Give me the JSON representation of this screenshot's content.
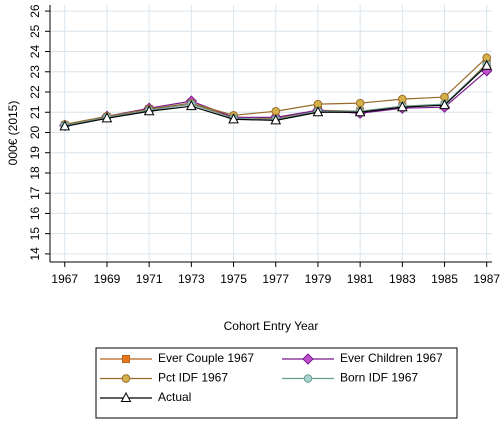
{
  "chart_data": {
    "type": "line",
    "x_label": "Cohort Entry Year",
    "y_label": "000€ (2015)",
    "x": [
      1967,
      1969,
      1971,
      1973,
      1975,
      1977,
      1979,
      1981,
      1983,
      1985,
      1987
    ],
    "xlim": [
      1966.3,
      1987.25
    ],
    "xticks": [
      1967,
      1969,
      1971,
      1973,
      1975,
      1977,
      1979,
      1981,
      1983,
      1985,
      1987
    ],
    "ylim": [
      13.6,
      26.3
    ],
    "yticks": [
      14,
      15,
      16,
      17,
      18,
      19,
      20,
      21,
      22,
      23,
      24,
      25,
      26
    ],
    "grid": true,
    "legend": "bottom",
    "series": [
      {
        "name": "Ever Couple 1967",
        "color": "#e8761f",
        "line_color": "#b5651d",
        "marker": "square",
        "values": [
          20.35,
          20.75,
          21.15,
          21.45,
          20.75,
          20.7,
          21.1,
          21.05,
          21.3,
          21.35,
          23.4
        ]
      },
      {
        "name": "Ever Children 1967",
        "color": "#c050d0",
        "line_color": "#7a1a8c",
        "marker": "diamond",
        "values": [
          20.35,
          20.8,
          21.2,
          21.55,
          20.75,
          20.75,
          21.1,
          20.95,
          21.2,
          21.25,
          23.05
        ]
      },
      {
        "name": "Pct IDF 1967",
        "color": "#d4b048",
        "line_color": "#9a6a28",
        "marker": "circle",
        "values": [
          20.4,
          20.8,
          21.15,
          21.45,
          20.85,
          21.05,
          21.4,
          21.45,
          21.65,
          21.75,
          23.7
        ]
      },
      {
        "name": "Born IDF 1967",
        "color": "#a8d4cc",
        "line_color": "#6a9a94",
        "marker": "circle",
        "values": [
          20.35,
          20.75,
          21.1,
          21.4,
          20.7,
          20.65,
          21.05,
          21.05,
          21.3,
          21.4,
          23.35
        ]
      },
      {
        "name": "Actual",
        "color": "#ffffff",
        "line_color": "#000000",
        "marker": "triangle",
        "values": [
          20.3,
          20.7,
          21.05,
          21.3,
          20.65,
          20.6,
          21.0,
          21.0,
          21.25,
          21.35,
          23.3
        ]
      }
    ]
  }
}
